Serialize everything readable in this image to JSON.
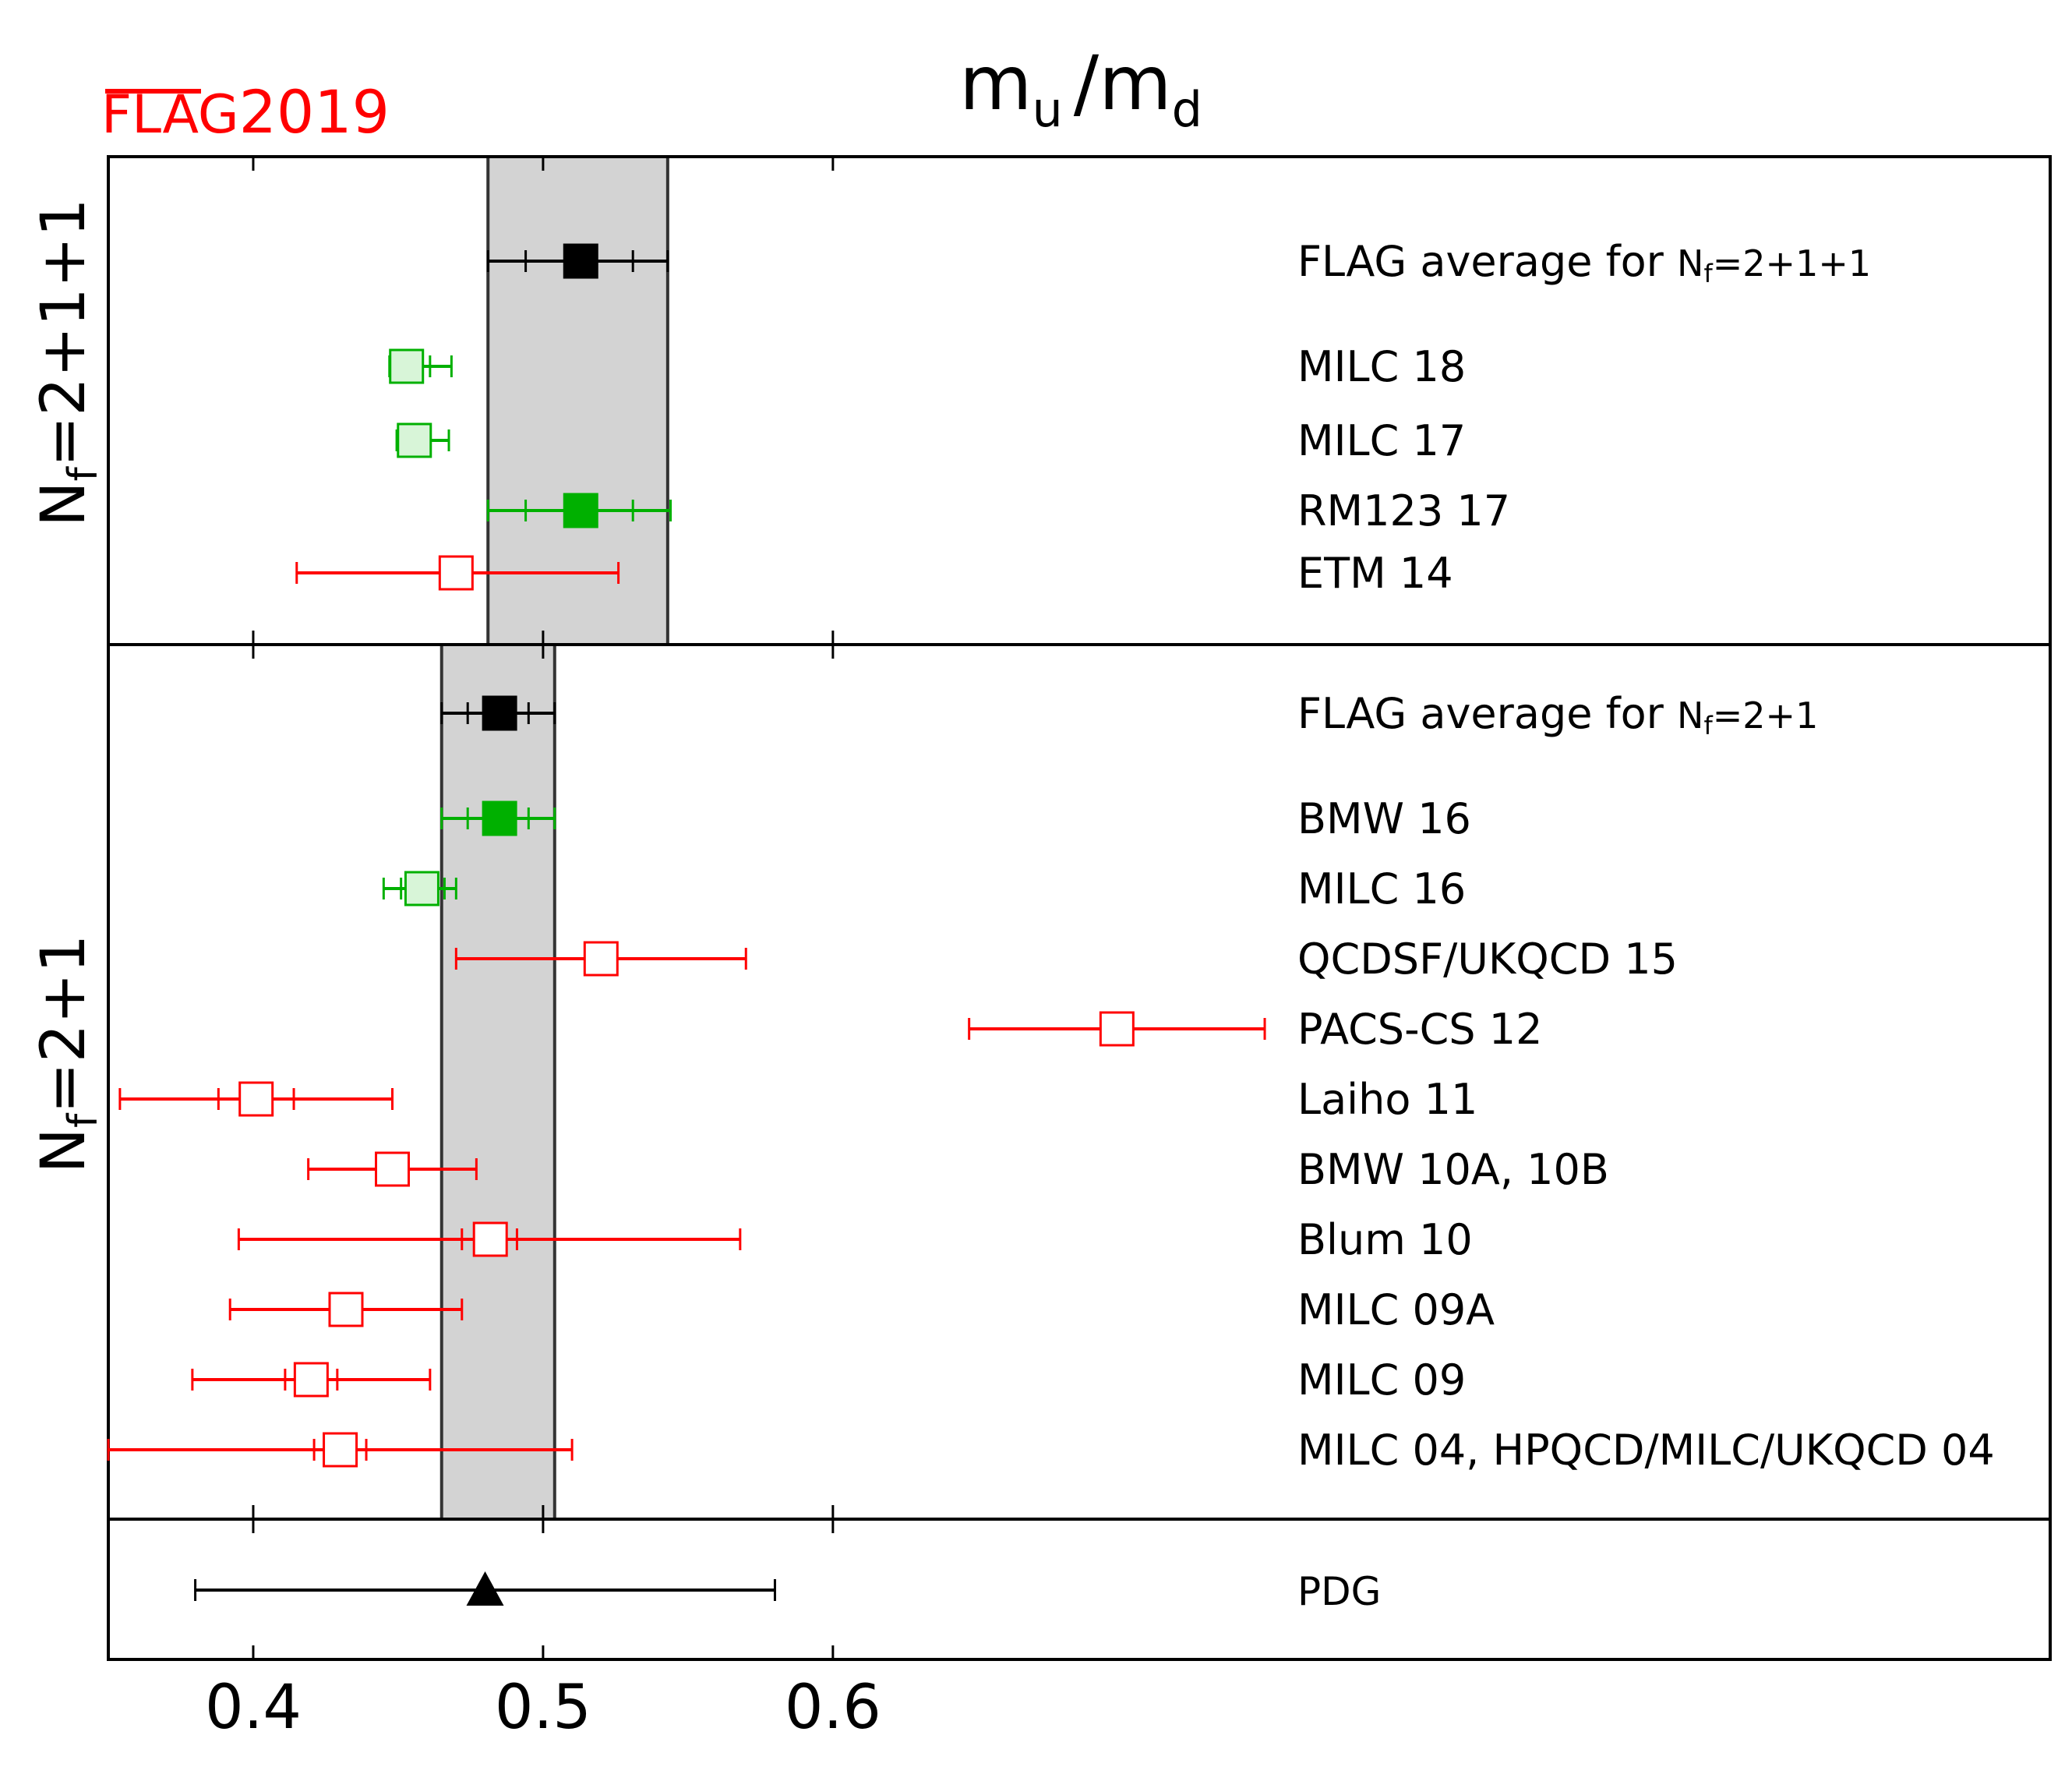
{
  "logo": {
    "flag": "FLAG",
    "year": "2019",
    "color": "#ff0000"
  },
  "title": {
    "m1": "m",
    "s1": "u",
    "slash": "/",
    "m2": "m",
    "s2": "d"
  },
  "colors": {
    "average": "#000000",
    "green": "#00b000",
    "green_light_fill": "#d8f5d8",
    "red": "#ff0000",
    "band_fill": "#d3d3d3"
  },
  "chart_data": {
    "type": "scatter",
    "title": "mu/md",
    "xlim": [
      0.35,
      1.02
    ],
    "xticks": [
      0.4,
      0.5,
      0.6
    ],
    "xtick_labels": [
      "0.4",
      "0.5",
      "0.6"
    ],
    "panels": [
      {
        "id": "nf2p1p1",
        "label_main": "N",
        "label_sub": "f",
        "label_rest": "=2+1+1",
        "band": [
          0.481,
          0.543
        ],
        "entries": [
          {
            "label": "FLAG average for ",
            "label_math": {
              "n": "N",
              "sub": "f",
              "rest": "=2+1+1"
            },
            "value": 0.513,
            "err_lo": 0.481,
            "err_hi": 0.543,
            "stat_lo": 0.494,
            "stat_hi": 0.531,
            "style": "average"
          },
          {
            "label": "MILC 18",
            "value": 0.4529,
            "err_lo": 0.447,
            "err_hi": 0.4684,
            "stat_lo": 0.449,
            "stat_hi": 0.461,
            "style": "green-open"
          },
          {
            "label": "MILC 17",
            "value": 0.4556,
            "err_lo": 0.4495,
            "err_hi": 0.4675,
            "stat_lo": 0.451,
            "stat_hi": 0.4605,
            "style": "green-open"
          },
          {
            "label": "RM123 17",
            "value": 0.513,
            "err_lo": 0.481,
            "err_hi": 0.544,
            "stat_lo": 0.494,
            "stat_hi": 0.531,
            "style": "green-filled"
          },
          {
            "label": "ETM 14",
            "value": 0.47,
            "err_lo": 0.415,
            "err_hi": 0.526,
            "style": "red-open"
          }
        ]
      },
      {
        "id": "nf2p1",
        "label_main": "N",
        "label_sub": "f",
        "label_rest": "=2+1",
        "band": [
          0.465,
          0.504
        ],
        "entries": [
          {
            "label": "FLAG average for ",
            "label_math": {
              "n": "N",
              "sub": "f",
              "rest": "=2+1"
            },
            "value": 0.485,
            "err_lo": 0.465,
            "err_hi": 0.504,
            "stat_lo": 0.474,
            "stat_hi": 0.495,
            "style": "average"
          },
          {
            "label": "BMW 16",
            "value": 0.485,
            "err_lo": 0.465,
            "err_hi": 0.504,
            "stat_lo": 0.474,
            "stat_hi": 0.495,
            "style": "green-filled"
          },
          {
            "label": "MILC 16",
            "value": 0.4582,
            "err_lo": 0.445,
            "err_hi": 0.47,
            "stat_lo": 0.451,
            "stat_hi": 0.466,
            "style": "green-open"
          },
          {
            "label": "QCDSF/UKQCD 15",
            "value": 0.52,
            "err_lo": 0.47,
            "err_hi": 0.57,
            "style": "red-open"
          },
          {
            "label": "PACS-CS 12",
            "value": 0.698,
            "err_lo": 0.647,
            "err_hi": 0.749,
            "style": "red-open"
          },
          {
            "label": "Laiho 11",
            "value": 0.401,
            "err_lo": 0.354,
            "err_hi": 0.448,
            "stat_lo": 0.388,
            "stat_hi": 0.414,
            "style": "red-open"
          },
          {
            "label": "BMW 10A, 10B",
            "value": 0.448,
            "err_lo": 0.419,
            "err_hi": 0.477,
            "style": "red-open"
          },
          {
            "label": "Blum 10",
            "value": 0.4818,
            "err_lo": 0.395,
            "err_hi": 0.568,
            "stat_lo": 0.472,
            "stat_hi": 0.491,
            "style": "red-open"
          },
          {
            "label": "MILC 09A",
            "value": 0.432,
            "err_lo": 0.392,
            "err_hi": 0.472,
            "style": "red-open"
          },
          {
            "label": "MILC 09",
            "value": 0.42,
            "err_lo": 0.379,
            "err_hi": 0.461,
            "stat_lo": 0.411,
            "stat_hi": 0.429,
            "style": "red-open"
          },
          {
            "label": "MILC 04, HPQCD/MILC/UKQCD 04",
            "value": 0.43,
            "err_lo": 0.35,
            "err_hi": 0.51,
            "stat_lo": 0.421,
            "stat_hi": 0.439,
            "style": "red-open"
          }
        ]
      },
      {
        "id": "pdg",
        "entries": [
          {
            "label": "PDG",
            "value": 0.48,
            "err_lo": 0.38,
            "err_hi": 0.58,
            "style": "triangle"
          }
        ]
      }
    ]
  }
}
